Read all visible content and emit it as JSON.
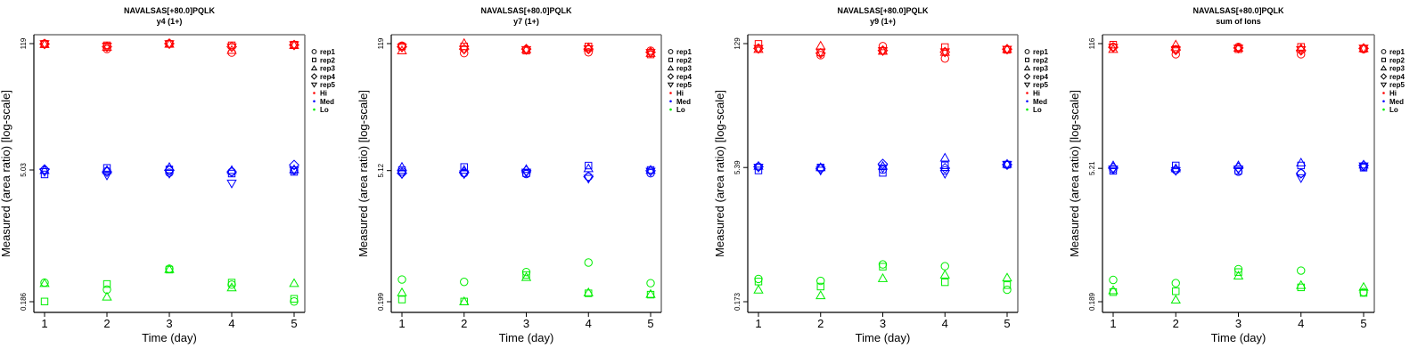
{
  "chart_data": [
    {
      "type": "scatter",
      "title": "NAVALSAS[+80.0]PQLK",
      "subtitle": "y4 (1+)",
      "xlabel": "Time (day)",
      "ylabel": "Measured (area ratio) [log-scale]",
      "x_ticks": [
        "1",
        "2",
        "3",
        "4",
        "5"
      ],
      "y_scale": "log",
      "y_ticks": [
        {
          "value": 119,
          "label": "119"
        },
        {
          "value": 5.03,
          "label": "5.03"
        },
        {
          "value": 0.186,
          "label": "0.186"
        }
      ],
      "ylim": [
        0.16,
        140
      ],
      "series": [
        {
          "level": "Hi",
          "rep": "rep1",
          "values": [
            119,
            104,
            119,
            95,
            115
          ]
        },
        {
          "level": "Hi",
          "rep": "rep2",
          "values": [
            118,
            114,
            118,
            114,
            116
          ]
        },
        {
          "level": "Hi",
          "rep": "rep3",
          "values": [
            117,
            109,
            118,
            101,
            114
          ]
        },
        {
          "level": "Hi",
          "rep": "rep4",
          "values": [
            118,
            110,
            119,
            110,
            115
          ]
        },
        {
          "level": "Hi",
          "rep": "rep5",
          "values": [
            118,
            111,
            118,
            109,
            115
          ]
        },
        {
          "level": "Med",
          "rep": "rep1",
          "values": [
            5.0,
            4.9,
            4.7,
            4.8,
            5.0
          ]
        },
        {
          "level": "Med",
          "rep": "rep2",
          "values": [
            4.5,
            5.3,
            5.1,
            4.6,
            4.8
          ]
        },
        {
          "level": "Med",
          "rep": "rep3",
          "values": [
            5.0,
            5.0,
            5.4,
            5.0,
            5.1
          ]
        },
        {
          "level": "Med",
          "rep": "rep4",
          "values": [
            5.1,
            4.8,
            5.0,
            4.8,
            5.7
          ]
        },
        {
          "level": "Med",
          "rep": "rep5",
          "values": [
            4.8,
            4.4,
            4.6,
            3.6,
            5.0
          ]
        },
        {
          "level": "Lo",
          "rep": "rep1",
          "values": [
            0.3,
            0.252,
            0.425,
            0.285,
            0.187
          ]
        },
        {
          "level": "Lo",
          "rep": "rep2",
          "values": [
            0.187,
            0.29,
            0.415,
            0.3,
            0.2
          ]
        },
        {
          "level": "Lo",
          "rep": "rep3",
          "values": [
            0.295,
            0.21,
            0.42,
            0.265,
            0.295
          ]
        }
      ]
    },
    {
      "type": "scatter",
      "title": "NAVALSAS[+80.0]PQLK",
      "subtitle": "y7 (1+)",
      "xlabel": "Time (day)",
      "ylabel": "Measured (area ratio) [log-scale]",
      "x_ticks": [
        "1",
        "2",
        "3",
        "4",
        "5"
      ],
      "y_scale": "log",
      "y_ticks": [
        {
          "value": 119,
          "label": "119"
        },
        {
          "value": 5.12,
          "label": "5.12"
        },
        {
          "value": 0.199,
          "label": "0.199"
        }
      ],
      "ylim": [
        0.17,
        140
      ],
      "series": [
        {
          "level": "Hi",
          "rep": "rep1",
          "values": [
            113,
            94,
            103,
            96,
            100
          ]
        },
        {
          "level": "Hi",
          "rep": "rep2",
          "values": [
            111,
            111,
            100,
            111,
            91
          ]
        },
        {
          "level": "Hi",
          "rep": "rep3",
          "values": [
            100,
            120,
            103,
            108,
            94
          ]
        },
        {
          "level": "Hi",
          "rep": "rep4",
          "values": [
            110,
            104,
            104,
            104,
            96
          ]
        },
        {
          "level": "Hi",
          "rep": "rep5",
          "values": [
            108,
            103,
            102,
            104,
            95
          ]
        },
        {
          "level": "Med",
          "rep": "rep1",
          "values": [
            5.0,
            4.8,
            4.7,
            4.4,
            4.8
          ]
        },
        {
          "level": "Med",
          "rep": "rep2",
          "values": [
            5.2,
            5.6,
            4.8,
            5.8,
            5.2
          ]
        },
        {
          "level": "Med",
          "rep": "rep3",
          "values": [
            5.6,
            5.2,
            5.3,
            5.4,
            5.2
          ]
        },
        {
          "level": "Med",
          "rep": "rep4",
          "values": [
            4.8,
            4.9,
            5.1,
            4.4,
            5.1
          ]
        },
        {
          "level": "Med",
          "rep": "rep5",
          "values": [
            4.7,
            4.7,
            4.9,
            4.2,
            5.0
          ]
        },
        {
          "level": "Lo",
          "rep": "rep1",
          "values": [
            0.345,
            0.325,
            0.415,
            0.525,
            0.315
          ]
        },
        {
          "level": "Lo",
          "rep": "rep2",
          "values": [
            0.21,
            0.2,
            0.385,
            0.245,
            0.237
          ]
        },
        {
          "level": "Lo",
          "rep": "rep3",
          "values": [
            0.25,
            0.2,
            0.365,
            0.25,
            0.24
          ]
        }
      ]
    },
    {
      "type": "scatter",
      "title": "NAVALSAS[+80.0]PQLK",
      "subtitle": "y9 (1+)",
      "xlabel": "Time (day)",
      "ylabel": "Measured (area ratio) [log-scale]",
      "x_ticks": [
        "1",
        "2",
        "3",
        "4",
        "5"
      ],
      "y_scale": "log",
      "y_ticks": [
        {
          "value": 129,
          "label": "129"
        },
        {
          "value": 5.39,
          "label": "5.39"
        },
        {
          "value": 0.173,
          "label": "0.173"
        }
      ],
      "ylim": [
        0.15,
        152
      ],
      "series": [
        {
          "level": "Hi",
          "rep": "rep1",
          "values": [
            114,
            96,
            121,
            88,
            111
          ]
        },
        {
          "level": "Hi",
          "rep": "rep2",
          "values": [
            128,
            103,
            107,
            118,
            110
          ]
        },
        {
          "level": "Hi",
          "rep": "rep3",
          "values": [
            112,
            122,
            107,
            104,
            112
          ]
        },
        {
          "level": "Hi",
          "rep": "rep4",
          "values": [
            114,
            101,
            108,
            104,
            112
          ]
        },
        {
          "level": "Hi",
          "rep": "rep5",
          "values": [
            113,
            103,
            107,
            104,
            111
          ]
        },
        {
          "level": "Med",
          "rep": "rep1",
          "values": [
            5.5,
            5.3,
            5.1,
            5.0,
            5.8
          ]
        },
        {
          "level": "Med",
          "rep": "rep2",
          "values": [
            5.0,
            5.4,
            4.7,
            5.7,
            5.8
          ]
        },
        {
          "level": "Med",
          "rep": "rep3",
          "values": [
            5.6,
            5.4,
            5.6,
            6.9,
            5.9
          ]
        },
        {
          "level": "Med",
          "rep": "rep4",
          "values": [
            5.5,
            5.2,
            5.9,
            5.3,
            5.8
          ]
        },
        {
          "level": "Med",
          "rep": "rep5",
          "values": [
            5.4,
            5.0,
            5.3,
            4.6,
            5.8
          ]
        },
        {
          "level": "Lo",
          "rep": "rep1",
          "values": [
            0.31,
            0.295,
            0.45,
            0.43,
            0.235
          ]
        },
        {
          "level": "Lo",
          "rep": "rep2",
          "values": [
            0.29,
            0.255,
            0.425,
            0.285,
            0.265
          ]
        },
        {
          "level": "Lo",
          "rep": "rep3",
          "values": [
            0.235,
            0.203,
            0.315,
            0.345,
            0.32
          ]
        }
      ]
    },
    {
      "type": "scatter",
      "title": "NAVALSAS[+80.0]PQLK",
      "subtitle": "sum of Ions",
      "xlabel": "Time (day)",
      "ylabel": "Measured (area ratio) [log-scale]",
      "x_ticks": [
        "1",
        "2",
        "3",
        "4",
        "5"
      ],
      "y_scale": "log",
      "y_ticks": [
        {
          "value": 116,
          "label": "116"
        },
        {
          "value": 5.21,
          "label": "5.21"
        },
        {
          "value": 0.189,
          "label": "0.189"
        }
      ],
      "ylim": [
        0.165,
        136
      ],
      "series": [
        {
          "level": "Hi",
          "rep": "rep1",
          "values": [
            107,
            89,
            107,
            89,
            101
          ]
        },
        {
          "level": "Hi",
          "rep": "rep2",
          "values": [
            113,
            101,
            101,
            107,
            102
          ]
        },
        {
          "level": "Hi",
          "rep": "rep3",
          "values": [
            101,
            113,
            104,
            103,
            103
          ]
        },
        {
          "level": "Hi",
          "rep": "rep4",
          "values": [
            106,
            99,
            104,
            98,
            103
          ]
        },
        {
          "level": "Hi",
          "rep": "rep5",
          "values": [
            105,
            99,
            103,
            99,
            103
          ]
        },
        {
          "level": "Med",
          "rep": "rep1",
          "values": [
            5.1,
            5.0,
            4.8,
            4.6,
            5.4
          ]
        },
        {
          "level": "Med",
          "rep": "rep2",
          "values": [
            4.9,
            5.6,
            4.9,
            5.6,
            5.3
          ]
        },
        {
          "level": "Med",
          "rep": "rep3",
          "values": [
            5.6,
            5.2,
            5.6,
            6.0,
            5.7
          ]
        },
        {
          "level": "Med",
          "rep": "rep4",
          "values": [
            5.3,
            5.0,
            5.3,
            4.6,
            5.6
          ]
        },
        {
          "level": "Med",
          "rep": "rep5",
          "values": [
            5.1,
            4.9,
            5.1,
            4.1,
            5.5
          ]
        },
        {
          "level": "Lo",
          "rep": "rep1",
          "values": [
            0.325,
            0.3,
            0.425,
            0.41,
            0.24
          ]
        },
        {
          "level": "Lo",
          "rep": "rep2",
          "values": [
            0.24,
            0.245,
            0.395,
            0.27,
            0.235
          ]
        },
        {
          "level": "Lo",
          "rep": "rep3",
          "values": [
            0.25,
            0.198,
            0.36,
            0.285,
            0.272
          ]
        }
      ]
    }
  ],
  "legend": {
    "position": "right",
    "items": [
      {
        "symbol": "circle",
        "label": "rep1"
      },
      {
        "symbol": "square",
        "label": "rep2"
      },
      {
        "symbol": "triangle-up",
        "label": "rep3"
      },
      {
        "symbol": "diamond",
        "label": "rep4"
      },
      {
        "symbol": "triangle-down",
        "label": "rep5"
      },
      {
        "symbol": "dot",
        "label": "Hi",
        "color": "#ff0000"
      },
      {
        "symbol": "dot",
        "label": "Med",
        "color": "#0000ff"
      },
      {
        "symbol": "dot",
        "label": "Lo",
        "color": "#00ee00"
      }
    ]
  },
  "colors": {
    "Hi": "#ff0000",
    "Med": "#0000ff",
    "Lo": "#00ee00"
  },
  "rep_symbols": {
    "rep1": "circle",
    "rep2": "square",
    "rep3": "triangle-up",
    "rep4": "diamond",
    "rep5": "triangle-down"
  }
}
